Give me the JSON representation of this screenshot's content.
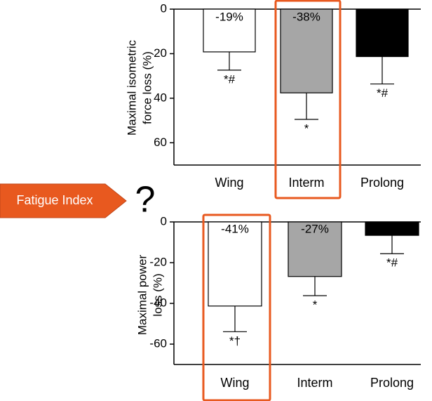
{
  "chart_data": [
    {
      "type": "bar",
      "ylabel": [
        "Maximal isometric",
        "force loss (%)"
      ],
      "categories": [
        "Wing",
        "Interm",
        "Prolong"
      ],
      "values": [
        -19.2,
        -37.6,
        -21.3
      ],
      "value_labels": [
        "-19%",
        "-38%",
        null
      ],
      "errors": [
        8.2,
        11.9,
        12.3
      ],
      "annotations": [
        "*#",
        "*",
        "*#"
      ],
      "colors": [
        "#ffffff",
        "#a6a6a6",
        "#000000"
      ],
      "ylim": [
        -70,
        0
      ],
      "yticks": [
        0,
        {
          "value": -20,
          "label": "20"
        },
        {
          "value": -40,
          "label": "40"
        },
        {
          "value": -60,
          "label": "60"
        }
      ],
      "highlight_index": 1
    },
    {
      "type": "bar",
      "ylabel": [
        "Maximal power",
        "loss (%)"
      ],
      "categories": [
        "Wing",
        "Interm",
        "Prolong"
      ],
      "values": [
        -41.3,
        -26.8,
        -6.6
      ],
      "value_labels": [
        "-41%",
        "-27%",
        null
      ],
      "errors": [
        12.6,
        9.4,
        9.0
      ],
      "annotations": [
        "*†",
        "*",
        "*#"
      ],
      "colors": [
        "#ffffff",
        "#a6a6a6",
        "#000000"
      ],
      "ylim": [
        -70,
        0
      ],
      "yticks": [
        0,
        -20,
        -40,
        -60
      ],
      "highlight_index": 0
    }
  ],
  "callout": {
    "label": "Fatigue Index",
    "mark": "?"
  }
}
